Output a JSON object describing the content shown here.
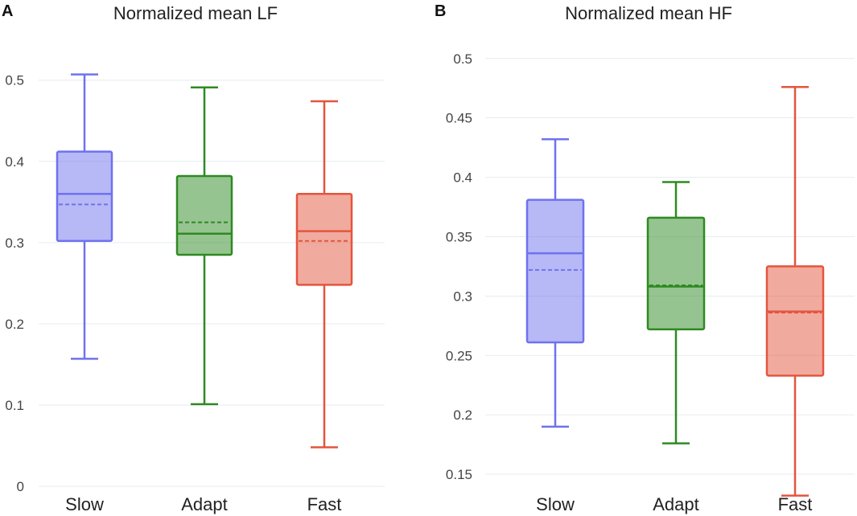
{
  "colors": {
    "slow": "#6f72ee",
    "adapt": "#2e8a22",
    "fast": "#e4553e"
  },
  "chart_data": [
    {
      "panel": "A",
      "type": "box",
      "title": "Normalized mean LF",
      "xlabel": "",
      "ylabel": "",
      "ylim": [
        0,
        0.52
      ],
      "yticks": [
        0,
        0.1,
        0.2,
        0.3,
        0.4,
        0.5
      ],
      "ytick_labels": [
        "0",
        "0.1",
        "0.2",
        "0.3",
        "0.4",
        "0.5"
      ],
      "categories": [
        "Slow",
        "Adapt",
        "Fast"
      ],
      "boxes": [
        {
          "name": "Slow",
          "color_key": "slow",
          "min": 0.157,
          "q1": 0.302,
          "median": 0.36,
          "q3": 0.412,
          "max": 0.507,
          "mean": 0.347
        },
        {
          "name": "Adapt",
          "color_key": "adapt",
          "min": 0.101,
          "q1": 0.285,
          "median": 0.311,
          "q3": 0.382,
          "max": 0.491,
          "mean": 0.325
        },
        {
          "name": "Fast",
          "color_key": "fast",
          "min": 0.048,
          "q1": 0.248,
          "median": 0.314,
          "q3": 0.36,
          "max": 0.474,
          "mean": 0.302
        }
      ]
    },
    {
      "panel": "B",
      "type": "box",
      "title": "Normalized mean HF",
      "xlabel": "",
      "ylabel": "",
      "ylim": [
        0.125,
        0.51
      ],
      "yticks": [
        0.15,
        0.2,
        0.25,
        0.3,
        0.35,
        0.4,
        0.45,
        0.5
      ],
      "ytick_labels": [
        "0.15",
        "0.2",
        "0.25",
        "0.3",
        "0.35",
        "0.4",
        "0.45",
        "0.5"
      ],
      "categories": [
        "Slow",
        "Adapt",
        "Fast"
      ],
      "boxes": [
        {
          "name": "Slow",
          "color_key": "slow",
          "min": 0.19,
          "q1": 0.261,
          "median": 0.336,
          "q3": 0.381,
          "max": 0.432,
          "mean": 0.322
        },
        {
          "name": "Adapt",
          "color_key": "adapt",
          "min": 0.176,
          "q1": 0.272,
          "median": 0.308,
          "q3": 0.366,
          "max": 0.396,
          "mean": 0.309
        },
        {
          "name": "Fast",
          "color_key": "fast",
          "min": 0.132,
          "q1": 0.233,
          "median": 0.287,
          "q3": 0.325,
          "max": 0.476,
          "mean": 0.286
        }
      ]
    }
  ]
}
